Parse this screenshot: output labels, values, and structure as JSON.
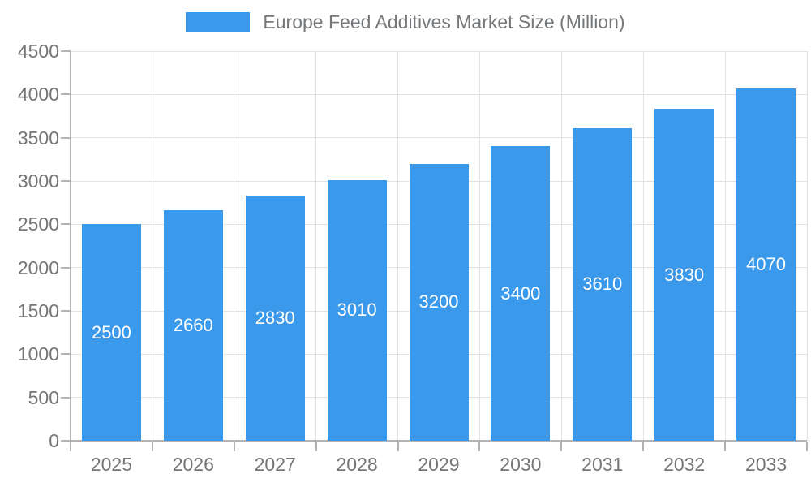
{
  "legend": {
    "label": "Europe Feed Additives Market Size (Million)",
    "swatch_color": "#3b99ec"
  },
  "chart_data": {
    "type": "bar",
    "title": "Europe Feed Additives Market Size (Million)",
    "categories": [
      "2025",
      "2026",
      "2027",
      "2028",
      "2029",
      "2030",
      "2031",
      "2032",
      "2033"
    ],
    "values": [
      2500,
      2660,
      2830,
      3010,
      3200,
      3400,
      3610,
      3830,
      4070
    ],
    "xlabel": "",
    "ylabel": "",
    "ylim": [
      0,
      4500
    ],
    "ytick_step": 500,
    "yticks": [
      "0",
      "500",
      "1000",
      "1500",
      "2000",
      "2500",
      "3000",
      "3500",
      "4000",
      "4500"
    ],
    "grid": true,
    "legend_position": "top",
    "bar_label_position": "inside-center"
  },
  "colors": {
    "bar": "#3b99ec",
    "bar_label": "#ffffff",
    "grid": "#e2e2e2",
    "axis": "#b3b3b3",
    "tick_text": "#757575",
    "legend_text": "#75787b",
    "background": "#ffffff"
  }
}
